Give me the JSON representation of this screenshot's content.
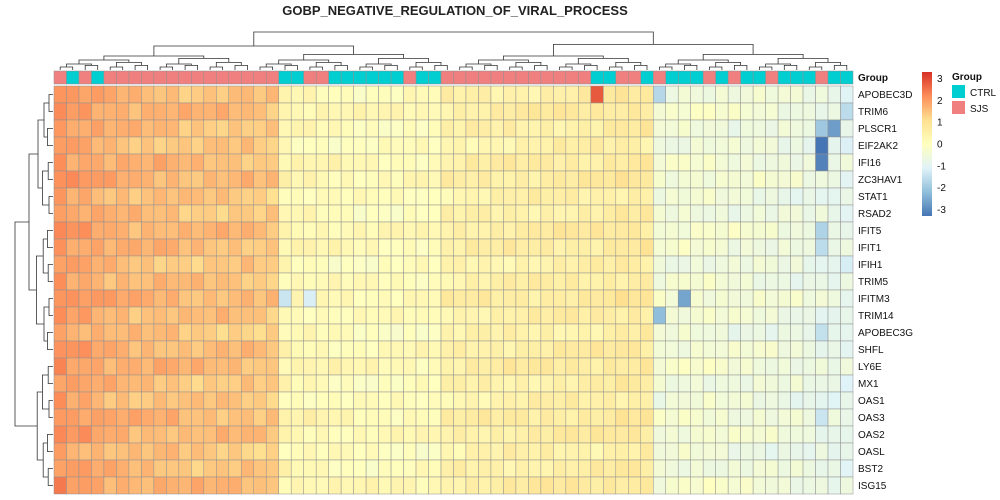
{
  "chart_data": {
    "type": "heatmap",
    "title": "GOBP_NEGATIVE_REGULATION_OF_VIRAL_PROCESS",
    "rows": [
      "APOBEC3D",
      "TRIM6",
      "PLSCR1",
      "EIF2AK2",
      "IFI16",
      "ZC3HAV1",
      "STAT1",
      "RSAD2",
      "IFIT5",
      "IFIT1",
      "IFIH1",
      "TRIM5",
      "IFITM3",
      "TRIM14",
      "APOBEC3G",
      "SHFL",
      "LY6E",
      "MX1",
      "OAS1",
      "OAS3",
      "OAS2",
      "OASL",
      "BST2",
      "ISG15"
    ],
    "group_annotation_label": "Group",
    "column_groups": [
      "SJS",
      "CTRL",
      "SJS",
      "CTRL",
      "SJS",
      "SJS",
      "SJS",
      "SJS",
      "SJS",
      "SJS",
      "SJS",
      "SJS",
      "SJS",
      "SJS",
      "SJS",
      "SJS",
      "SJS",
      "SJS",
      "CTRL",
      "CTRL",
      "SJS",
      "SJS",
      "CTRL",
      "CTRL",
      "CTRL",
      "CTRL",
      "CTRL",
      "CTRL",
      "SJS",
      "CTRL",
      "CTRL",
      "SJS",
      "SJS",
      "SJS",
      "SJS",
      "SJS",
      "SJS",
      "SJS",
      "SJS",
      "SJS",
      "SJS",
      "SJS",
      "SJS",
      "CTRL",
      "CTRL",
      "SJS",
      "SJS",
      "CTRL",
      "SJS",
      "CTRL",
      "CTRL",
      "CTRL",
      "SJS",
      "CTRL",
      "SJS",
      "CTRL",
      "CTRL",
      "SJS",
      "CTRL",
      "CTRL",
      "CTRL",
      "SJS",
      "CTRL",
      "CTRL"
    ],
    "legend": {
      "title": "Group",
      "entries": [
        {
          "name": "CTRL",
          "color": "#00CED1"
        },
        {
          "name": "SJS",
          "color": "#F08080"
        }
      ]
    },
    "color_scale": {
      "ticks": [
        3,
        2,
        1,
        0,
        -1,
        -2,
        -3
      ],
      "range": [
        -3.3,
        3.3
      ],
      "colors": [
        "#4575B4",
        "#91BFDB",
        "#E0F3F8",
        "#FFFFBF",
        "#FEE090",
        "#FC8D59",
        "#D73027"
      ]
    },
    "column_profile": [
      2.1,
      1.9,
      1.9,
      1.8,
      1.7,
      1.7,
      1.6,
      1.6,
      1.6,
      1.6,
      1.5,
      1.5,
      1.5,
      1.5,
      1.5,
      1.5,
      1.4,
      1.4,
      0.3,
      0.25,
      0.25,
      0.2,
      0.15,
      0.15,
      0.1,
      0.1,
      0.1,
      0.1,
      0.15,
      0.1,
      0.1,
      0.45,
      0.45,
      0.5,
      0.5,
      0.5,
      0.55,
      0.55,
      0.55,
      0.6,
      0.6,
      0.6,
      0.6,
      0.6,
      0.65,
      0.7,
      0.7,
      0.7,
      -0.45,
      -0.45,
      -0.4,
      -0.4,
      -0.4,
      -0.45,
      -0.5,
      -0.5,
      -0.5,
      -0.55,
      -0.6,
      -0.6,
      -0.7,
      -0.7,
      -0.8,
      -0.85
    ],
    "cell_overrides": [
      {
        "row": "APOBEC3D",
        "col": 43,
        "value": 2.8
      },
      {
        "row": "APOBEC3D",
        "col": 48,
        "value": -1.7
      },
      {
        "row": "TRIM6",
        "col": 63,
        "value": -1.6
      },
      {
        "row": "PLSCR1",
        "col": 61,
        "value": -2.0
      },
      {
        "row": "PLSCR1",
        "col": 62,
        "value": -2.7
      },
      {
        "row": "EIF2AK2",
        "col": 61,
        "value": -3.3
      },
      {
        "row": "IFI16",
        "col": 61,
        "value": -3.1
      },
      {
        "row": "IFIT5",
        "col": 61,
        "value": -1.8
      },
      {
        "row": "IFIT1",
        "col": 61,
        "value": -1.6
      },
      {
        "row": "IFITM3",
        "col": 18,
        "value": -1.4
      },
      {
        "row": "IFITM3",
        "col": 20,
        "value": -1.2
      },
      {
        "row": "IFITM3",
        "col": 50,
        "value": -2.6
      },
      {
        "row": "TRIM14",
        "col": 48,
        "value": -2.2
      },
      {
        "row": "APOBEC3G",
        "col": 61,
        "value": -1.5
      },
      {
        "row": "OAS3",
        "col": 61,
        "value": -1.4
      }
    ]
  }
}
